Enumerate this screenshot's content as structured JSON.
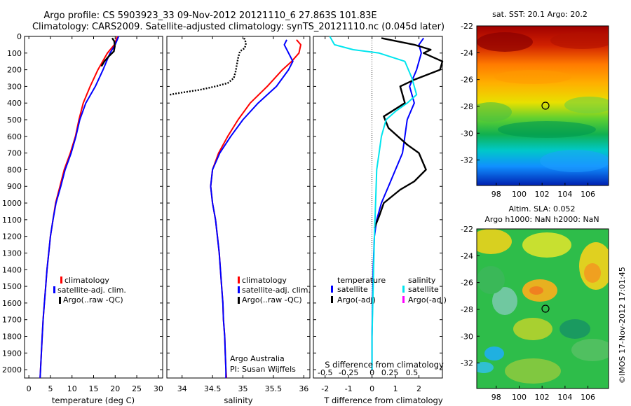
{
  "figure": {
    "title_line1": "Argo profile: CS 5903923_33 09-Nov-2012 20121110_6 27.863S 101.83E",
    "title_line2": "Climatology: CARS2009. Satellite-adjusted climatology: synTS_20121110.nc (0.045d later)",
    "side_text": "©IMOS 17-Nov-2012 17:01:45",
    "credit_line1": "Argo Australia",
    "credit_line2": "PI: Susan Wijffels",
    "colors": {
      "climatology": "#ff0000",
      "satellite": "#0000ff",
      "argo": "#000000",
      "satellite_s": "#00e5ee",
      "argo_s": "#ff00ff"
    }
  },
  "chart_data": [
    {
      "type": "line",
      "panel": "temperature",
      "xlabel": "temperature (deg C)",
      "ylabel": "",
      "xlim": [
        -1,
        31
      ],
      "ylim": [
        2050,
        0
      ],
      "xticks": [
        0,
        5,
        10,
        15,
        20,
        25,
        30
      ],
      "yticks": [
        0,
        100,
        200,
        300,
        400,
        500,
        600,
        700,
        800,
        900,
        1000,
        1100,
        1200,
        1300,
        1400,
        1500,
        1600,
        1700,
        1800,
        1900,
        2000
      ],
      "legend": [
        "climatology",
        "satellite-adj. clim.",
        "Argo(..raw -QC)"
      ],
      "series": [
        {
          "name": "climatology",
          "color": "#ff0000",
          "points": [
            [
              20.5,
              0
            ],
            [
              19.8,
              50
            ],
            [
              18.2,
              100
            ],
            [
              16,
              200
            ],
            [
              14.2,
              300
            ],
            [
              12.6,
              400
            ],
            [
              11.6,
              500
            ],
            [
              10.8,
              600
            ],
            [
              9.6,
              700
            ],
            [
              8.2,
              800
            ],
            [
              7.2,
              900
            ],
            [
              6.2,
              1000
            ],
            [
              5.6,
              1100
            ],
            [
              5.0,
              1200
            ],
            [
              4.6,
              1300
            ],
            [
              4.2,
              1400
            ],
            [
              3.9,
              1500
            ],
            [
              3.6,
              1600
            ],
            [
              3.3,
              1700
            ],
            [
              3.1,
              1800
            ],
            [
              2.9,
              1900
            ],
            [
              2.7,
              2000
            ],
            [
              2.6,
              2050
            ]
          ]
        },
        {
          "name": "satellite-adj. clim.",
          "color": "#0000ff",
          "points": [
            [
              20.8,
              0
            ],
            [
              20.0,
              50
            ],
            [
              18.8,
              100
            ],
            [
              17.2,
              200
            ],
            [
              15.4,
              300
            ],
            [
              13.2,
              400
            ],
            [
              11.8,
              500
            ],
            [
              10.9,
              600
            ],
            [
              9.8,
              700
            ],
            [
              8.4,
              800
            ],
            [
              7.4,
              900
            ],
            [
              6.3,
              1000
            ],
            [
              5.6,
              1100
            ],
            [
              5.0,
              1200
            ],
            [
              4.6,
              1300
            ],
            [
              4.2,
              1400
            ],
            [
              3.9,
              1500
            ],
            [
              3.6,
              1600
            ],
            [
              3.3,
              1700
            ],
            [
              3.1,
              1800
            ],
            [
              2.9,
              1900
            ],
            [
              2.7,
              2000
            ],
            [
              2.6,
              2050
            ]
          ]
        },
        {
          "name": "Argo(..raw -QC)",
          "color": "#000000",
          "points": [
            [
              19.3,
              10
            ],
            [
              19.8,
              30
            ],
            [
              19.9,
              60
            ],
            [
              19.7,
              90
            ],
            [
              18.5,
              120
            ],
            [
              17.5,
              150
            ],
            [
              16.8,
              180
            ]
          ]
        }
      ]
    },
    {
      "type": "line",
      "panel": "salinity",
      "xlabel": "salinity",
      "ylabel": "",
      "xlim": [
        33.75,
        36.1
      ],
      "ylim": [
        2050,
        0
      ],
      "xticks": [
        34,
        34.5,
        35,
        35.5,
        36
      ],
      "yticks": [
        0,
        100,
        200,
        300,
        400,
        500,
        600,
        700,
        800,
        900,
        1000,
        1100,
        1200,
        1300,
        1400,
        1500,
        1600,
        1700,
        1800,
        1900,
        2000
      ],
      "legend": [
        "climatology",
        "satellite-adj. clim.",
        "Argo(..raw -QC)"
      ],
      "series": [
        {
          "name": "climatology",
          "color": "#ff0000",
          "points": [
            [
              35.88,
              20
            ],
            [
              35.95,
              50
            ],
            [
              35.92,
              100
            ],
            [
              35.8,
              150
            ],
            [
              35.65,
              200
            ],
            [
              35.4,
              300
            ],
            [
              35.12,
              400
            ],
            [
              34.92,
              500
            ],
            [
              34.75,
              600
            ],
            [
              34.6,
              700
            ],
            [
              34.5,
              800
            ],
            [
              34.47,
              900
            ],
            [
              34.5,
              1000
            ],
            [
              34.55,
              1100
            ],
            [
              34.58,
              1200
            ],
            [
              34.61,
              1300
            ],
            [
              34.63,
              1400
            ],
            [
              34.65,
              1500
            ],
            [
              34.67,
              1600
            ],
            [
              34.68,
              1700
            ],
            [
              34.7,
              1800
            ],
            [
              34.71,
              1900
            ],
            [
              34.72,
              2000
            ],
            [
              34.73,
              2050
            ]
          ]
        },
        {
          "name": "satellite-adj. clim.",
          "color": "#0000ff",
          "points": [
            [
              35.72,
              20
            ],
            [
              35.68,
              50
            ],
            [
              35.75,
              100
            ],
            [
              35.82,
              150
            ],
            [
              35.75,
              200
            ],
            [
              35.55,
              300
            ],
            [
              35.25,
              400
            ],
            [
              35.0,
              500
            ],
            [
              34.8,
              600
            ],
            [
              34.62,
              700
            ],
            [
              34.5,
              800
            ],
            [
              34.47,
              900
            ],
            [
              34.5,
              1000
            ],
            [
              34.55,
              1100
            ],
            [
              34.58,
              1200
            ],
            [
              34.61,
              1300
            ],
            [
              34.63,
              1400
            ],
            [
              34.65,
              1500
            ],
            [
              34.67,
              1600
            ],
            [
              34.68,
              1700
            ],
            [
              34.7,
              1800
            ],
            [
              34.71,
              1900
            ],
            [
              34.72,
              2000
            ],
            [
              34.72,
              2050
            ]
          ]
        },
        {
          "name": "Argo(..raw -QC)",
          "color": "#000000",
          "points": [
            [
              35.02,
              10
            ],
            [
              35.05,
              40
            ],
            [
              35.03,
              70
            ],
            [
              34.95,
              90
            ],
            [
              34.92,
              130
            ],
            [
              34.9,
              170
            ],
            [
              34.88,
              210
            ],
            [
              34.85,
              250
            ],
            [
              34.75,
              280
            ],
            [
              34.55,
              300
            ],
            [
              34.3,
              320
            ],
            [
              33.95,
              340
            ],
            [
              33.8,
              350
            ]
          ]
        }
      ]
    },
    {
      "type": "line",
      "panel": "difference",
      "xlabel": "T difference from climatology",
      "xlabel_top": "S difference from climatology",
      "xlim": [
        -2.5,
        3
      ],
      "ylim": [
        2050,
        0
      ],
      "xticks": [
        -2,
        -1,
        0,
        1,
        2
      ],
      "x2ticks": [
        "-0.5",
        "-0.25",
        "0",
        "0.25",
        "0.5"
      ],
      "yticks": [
        0,
        100,
        200,
        300,
        400,
        500,
        600,
        700,
        800,
        900,
        1000,
        1100,
        1200,
        1300,
        1400,
        1500,
        1600,
        1700,
        1800,
        1900,
        2000
      ],
      "legend_header_t": "temperature",
      "legend_header_s": "salinity",
      "legend": [
        "satellite",
        "Argo(-adj)",
        "satellite",
        "Argo(-adj)"
      ],
      "series": [
        {
          "name": "temperature satellite",
          "color": "#0000ff",
          "points": [
            [
              2.2,
              10
            ],
            [
              2.0,
              50
            ],
            [
              2.1,
              100
            ],
            [
              1.9,
              200
            ],
            [
              1.6,
              300
            ],
            [
              1.8,
              400
            ],
            [
              1.5,
              500
            ],
            [
              1.4,
              600
            ],
            [
              1.3,
              700
            ],
            [
              1.0,
              800
            ],
            [
              0.7,
              900
            ],
            [
              0.4,
              1000
            ],
            [
              0.2,
              1100
            ],
            [
              0.1,
              1200
            ],
            [
              0.05,
              1400
            ],
            [
              0.02,
              1600
            ],
            [
              0.0,
              1800
            ],
            [
              0.0,
              2000
            ]
          ]
        },
        {
          "name": "temperature Argo(-adj)",
          "color": "#000000",
          "points": [
            [
              0.4,
              10
            ],
            [
              1.8,
              50
            ],
            [
              2.5,
              80
            ],
            [
              2.2,
              100
            ],
            [
              3.0,
              150
            ],
            [
              2.9,
              200
            ],
            [
              1.8,
              260
            ],
            [
              1.2,
              300
            ],
            [
              1.4,
              400
            ],
            [
              0.5,
              480
            ],
            [
              0.7,
              550
            ],
            [
              1.5,
              650
            ],
            [
              2.0,
              700
            ],
            [
              2.3,
              800
            ],
            [
              1.8,
              870
            ],
            [
              1.2,
              920
            ],
            [
              0.5,
              1000
            ],
            [
              0.3,
              1080
            ],
            [
              0.1,
              1150
            ]
          ]
        },
        {
          "name": "salinity satellite",
          "color": "#00e5ee",
          "points": [
            [
              -1.8,
              0
            ],
            [
              -1.6,
              50
            ],
            [
              -0.8,
              80
            ],
            [
              0.3,
              100
            ],
            [
              1.4,
              150
            ],
            [
              1.7,
              250
            ],
            [
              1.9,
              350
            ],
            [
              1.5,
              400
            ],
            [
              1.0,
              450
            ],
            [
              0.6,
              500
            ],
            [
              0.4,
              600
            ],
            [
              0.3,
              700
            ],
            [
              0.2,
              800
            ],
            [
              0.15,
              1000
            ],
            [
              0.1,
              1200
            ],
            [
              0.05,
              1500
            ],
            [
              0.0,
              1800
            ],
            [
              0.0,
              2000
            ]
          ]
        },
        {
          "name": "salinity Argo(-adj)",
          "color": "#ff00ff",
          "points": []
        }
      ]
    }
  ],
  "maps": [
    {
      "panel": "sst",
      "title": "sat. SST: 20.1  Argo: 20.2",
      "xticks": [
        "98",
        "100",
        "102",
        "104",
        "106"
      ],
      "yticks": [
        "-22",
        "-24",
        "-26",
        "-28",
        "-30",
        "-32"
      ],
      "xlim": [
        96.3,
        107.8
      ],
      "ylim": [
        -33.9,
        -22
      ],
      "marker": [
        101.83,
        -27.86
      ]
    },
    {
      "panel": "sla",
      "title_line1": "Altim. SLA: 0.052",
      "title_line2": "Argo h1000: NaN h2000: NaN",
      "xticks": [
        "98",
        "100",
        "102",
        "104",
        "106"
      ],
      "yticks": [
        "-22",
        "-24",
        "-26",
        "-28",
        "-30",
        "-32"
      ],
      "xlim": [
        96.3,
        107.8
      ],
      "ylim": [
        -33.9,
        -22
      ],
      "marker": [
        101.83,
        -27.86
      ]
    }
  ]
}
